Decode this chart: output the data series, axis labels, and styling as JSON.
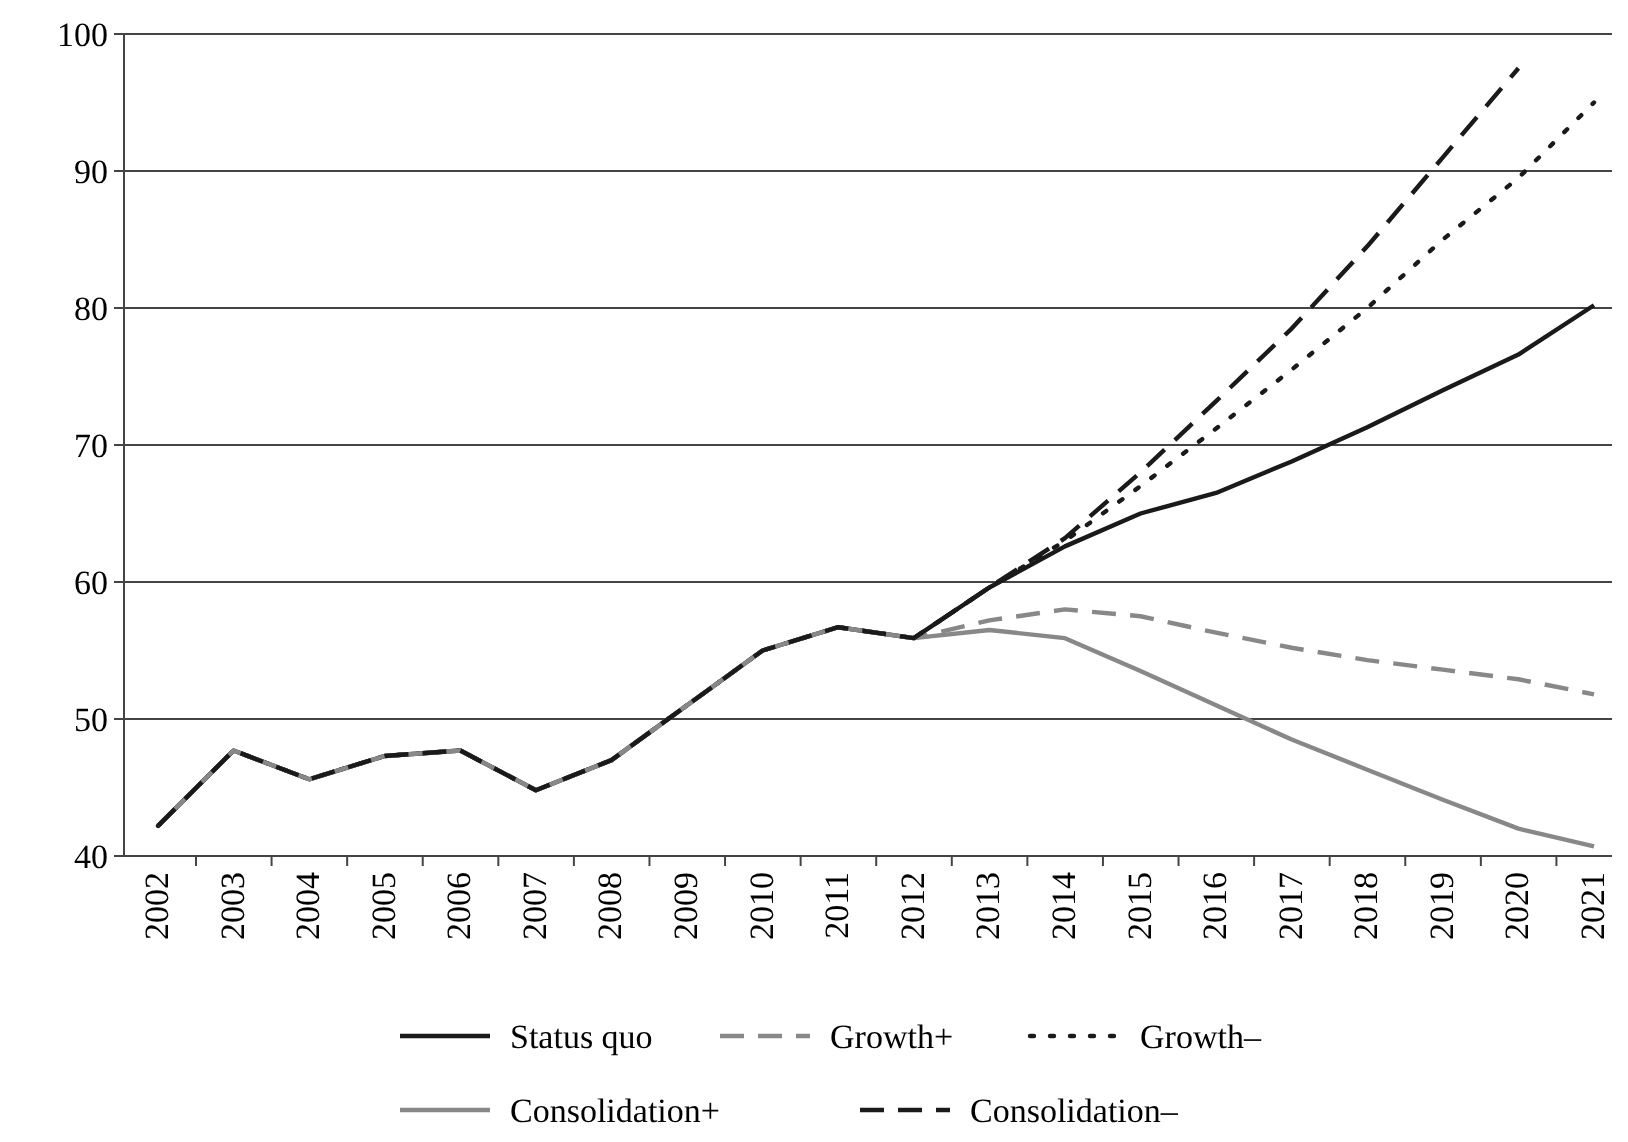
{
  "chart_data": {
    "type": "line",
    "categories": [
      "2002",
      "2003",
      "2004",
      "2005",
      "2006",
      "2007",
      "2008",
      "2009",
      "2010",
      "2011",
      "2012",
      "2013",
      "2014",
      "2015",
      "2016",
      "2017",
      "2018",
      "2019",
      "2020",
      "2021"
    ],
    "series": [
      {
        "name": "Status quo",
        "color": "#1a1a1a",
        "line_style": "solid",
        "values": [
          42.2,
          47.7,
          45.6,
          47.3,
          47.7,
          44.8,
          47.0,
          51.0,
          55.0,
          56.7,
          55.9,
          59.6,
          62.6,
          65.0,
          66.5,
          68.8,
          71.3,
          74.0,
          76.6,
          80.2
        ]
      },
      {
        "name": "Growth+",
        "color": "#888888",
        "line_style": "dashed",
        "values": [
          42.2,
          47.7,
          45.6,
          47.3,
          47.7,
          44.8,
          47.0,
          51.0,
          55.0,
          56.7,
          55.9,
          57.2,
          58.0,
          57.5,
          56.3,
          55.2,
          54.3,
          53.6,
          52.9,
          51.8
        ]
      },
      {
        "name": "Growth–",
        "color": "#1a1a1a",
        "line_style": "dotted",
        "values": [
          42.2,
          47.7,
          45.6,
          47.3,
          47.7,
          44.8,
          47.0,
          51.0,
          55.0,
          56.7,
          55.9,
          59.6,
          63.0,
          67.0,
          71.2,
          75.5,
          80.0,
          85.0,
          89.5,
          95.0
        ]
      },
      {
        "name": "Consolidation+",
        "color": "#888888",
        "line_style": "solid",
        "values": [
          42.2,
          47.7,
          45.6,
          47.3,
          47.7,
          44.8,
          47.0,
          51.0,
          55.0,
          56.7,
          55.9,
          56.5,
          55.9,
          53.5,
          51.0,
          48.5,
          46.3,
          44.1,
          42.0,
          40.7
        ]
      },
      {
        "name": "Consolidation–",
        "color": "#1a1a1a",
        "line_style": "dashed",
        "values": [
          42.2,
          47.7,
          45.6,
          47.3,
          47.7,
          44.8,
          47.0,
          51.0,
          55.0,
          56.7,
          55.9,
          59.6,
          63.2,
          68.0,
          73.2,
          78.5,
          84.5,
          91.0,
          97.5,
          null
        ]
      }
    ],
    "ylim": [
      40,
      100
    ],
    "yticks": [
      40,
      50,
      60,
      70,
      80,
      90,
      100
    ],
    "grid": "y",
    "legend": "bottom",
    "marker": "none"
  }
}
